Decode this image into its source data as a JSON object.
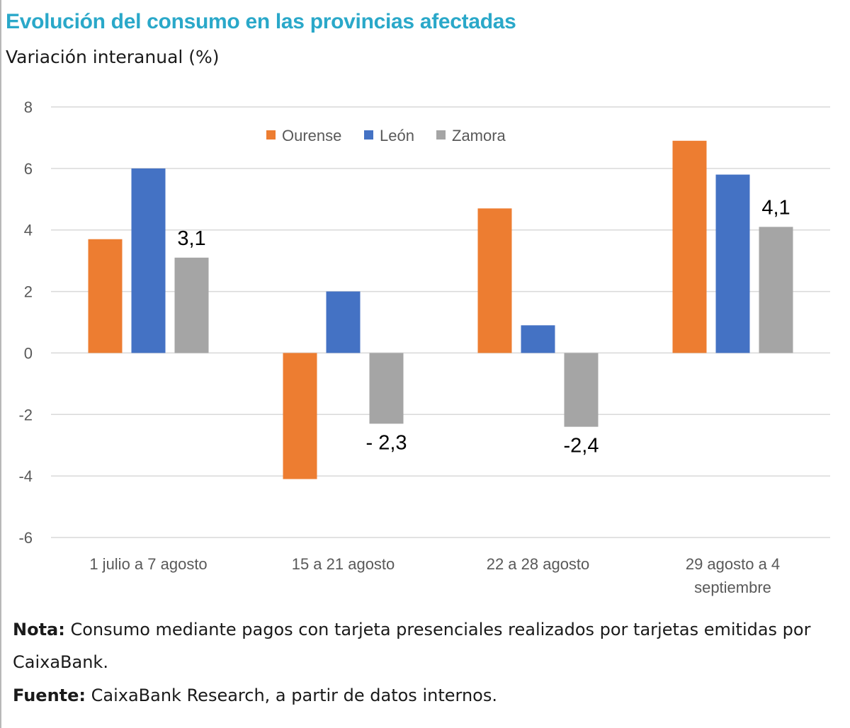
{
  "title": "Evolución del consumo en las provincias afectadas",
  "subtitle": "Variación interanual (%)",
  "colors": {
    "title": "#2aa8c9",
    "Ourense": "#ed7d31",
    "León": "#4472c4",
    "Zamora": "#a5a5a5",
    "grid": "#d9d9d9"
  },
  "chart_data": {
    "type": "bar",
    "categories": [
      [
        "1 julio a 7 agosto"
      ],
      [
        "15 a 21 agosto"
      ],
      [
        "22 a 28 agosto"
      ],
      [
        "29 agosto a 4",
        "septiembre"
      ]
    ],
    "series": [
      {
        "name": "Ourense",
        "values": [
          3.7,
          -4.1,
          4.7,
          6.9
        ]
      },
      {
        "name": "León",
        "values": [
          6.0,
          2.0,
          0.9,
          5.8
        ]
      },
      {
        "name": "Zamora",
        "values": [
          3.1,
          -2.3,
          -2.4,
          4.1
        ]
      }
    ],
    "data_labels": [
      {
        "series": "Zamora",
        "category_index": 0,
        "text": "3,1"
      },
      {
        "series": "Zamora",
        "category_index": 1,
        "text": "- 2,3"
      },
      {
        "series": "Zamora",
        "category_index": 2,
        "text": "-2,4"
      },
      {
        "series": "Zamora",
        "category_index": 3,
        "text": "4,1"
      }
    ],
    "ylim": [
      -6,
      8
    ],
    "yticks": [
      8,
      6,
      4,
      2,
      0,
      -2,
      -4,
      -6
    ],
    "ytick_labels": [
      "8",
      "6",
      "4",
      "2",
      "0",
      "-2",
      "-4",
      "-6"
    ],
    "legend_position": "top-center",
    "grid": true
  },
  "note": {
    "label": "Nota:",
    "text": " Consumo mediante pagos con tarjeta presenciales realizados por tarjetas emitidas por CaixaBank."
  },
  "source": {
    "label": "Fuente:",
    "text": " CaixaBank Research, a partir de datos internos."
  }
}
